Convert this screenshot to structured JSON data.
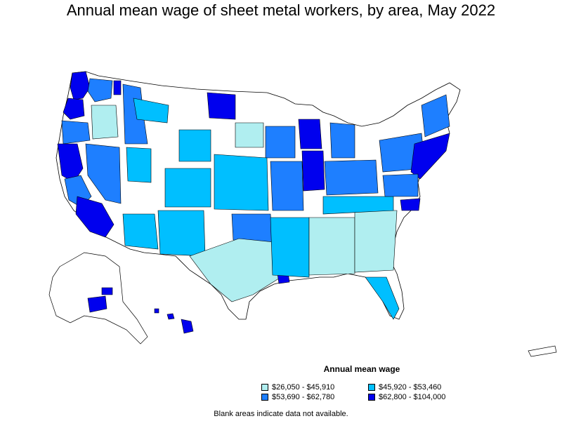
{
  "title": "Annual mean wage of sheet metal workers, by area, May 2022",
  "legend": {
    "title": "Annual mean wage",
    "items": [
      {
        "label": "$26,050 - $45,910",
        "color": "#b0eef0"
      },
      {
        "label": "$45,920 - $53,460",
        "color": "#00bfff"
      },
      {
        "label": "$53,690 - $62,780",
        "color": "#1e7fff"
      },
      {
        "label": "$62,800 - $104,000",
        "color": "#0000ee"
      }
    ]
  },
  "footnote": "Blank areas indicate data not available.",
  "colors": {
    "blank": "#ffffff",
    "border": "#000000"
  }
}
